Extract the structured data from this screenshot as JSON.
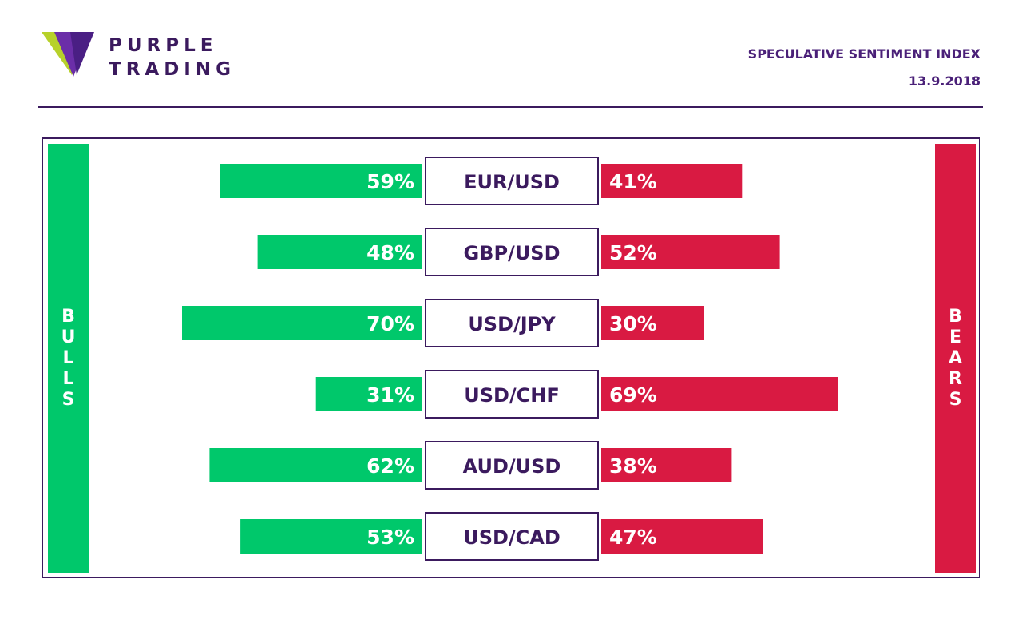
{
  "brand": {
    "line1": "PURPLE",
    "line2": "TRADING"
  },
  "header": {
    "title": "SPECULATIVE SENTIMENT INDEX",
    "date": "13.9.2018"
  },
  "colors": {
    "bulls": "#00c86b",
    "bears": "#d91a42",
    "brand": "#3b1a5e",
    "accent": "#4a2078"
  },
  "chart_data": {
    "type": "bar",
    "title": "SPECULATIVE SENTIMENT INDEX",
    "left_label": "BULLS",
    "right_label": "BEARS",
    "categories": [
      "EUR/USD",
      "GBP/USD",
      "USD/JPY",
      "USD/CHF",
      "AUD/USD",
      "USD/CAD"
    ],
    "series": [
      {
        "name": "BULLS",
        "values": [
          59,
          48,
          70,
          31,
          62,
          53
        ],
        "labels": [
          "59%",
          "48%",
          "70%",
          "31%",
          "62%",
          "53%"
        ]
      },
      {
        "name": "BEARS",
        "values": [
          41,
          52,
          30,
          69,
          38,
          47
        ],
        "labels": [
          "41%",
          "52%",
          "30%",
          "69%",
          "38%",
          "47%"
        ]
      }
    ],
    "unit": "%"
  }
}
